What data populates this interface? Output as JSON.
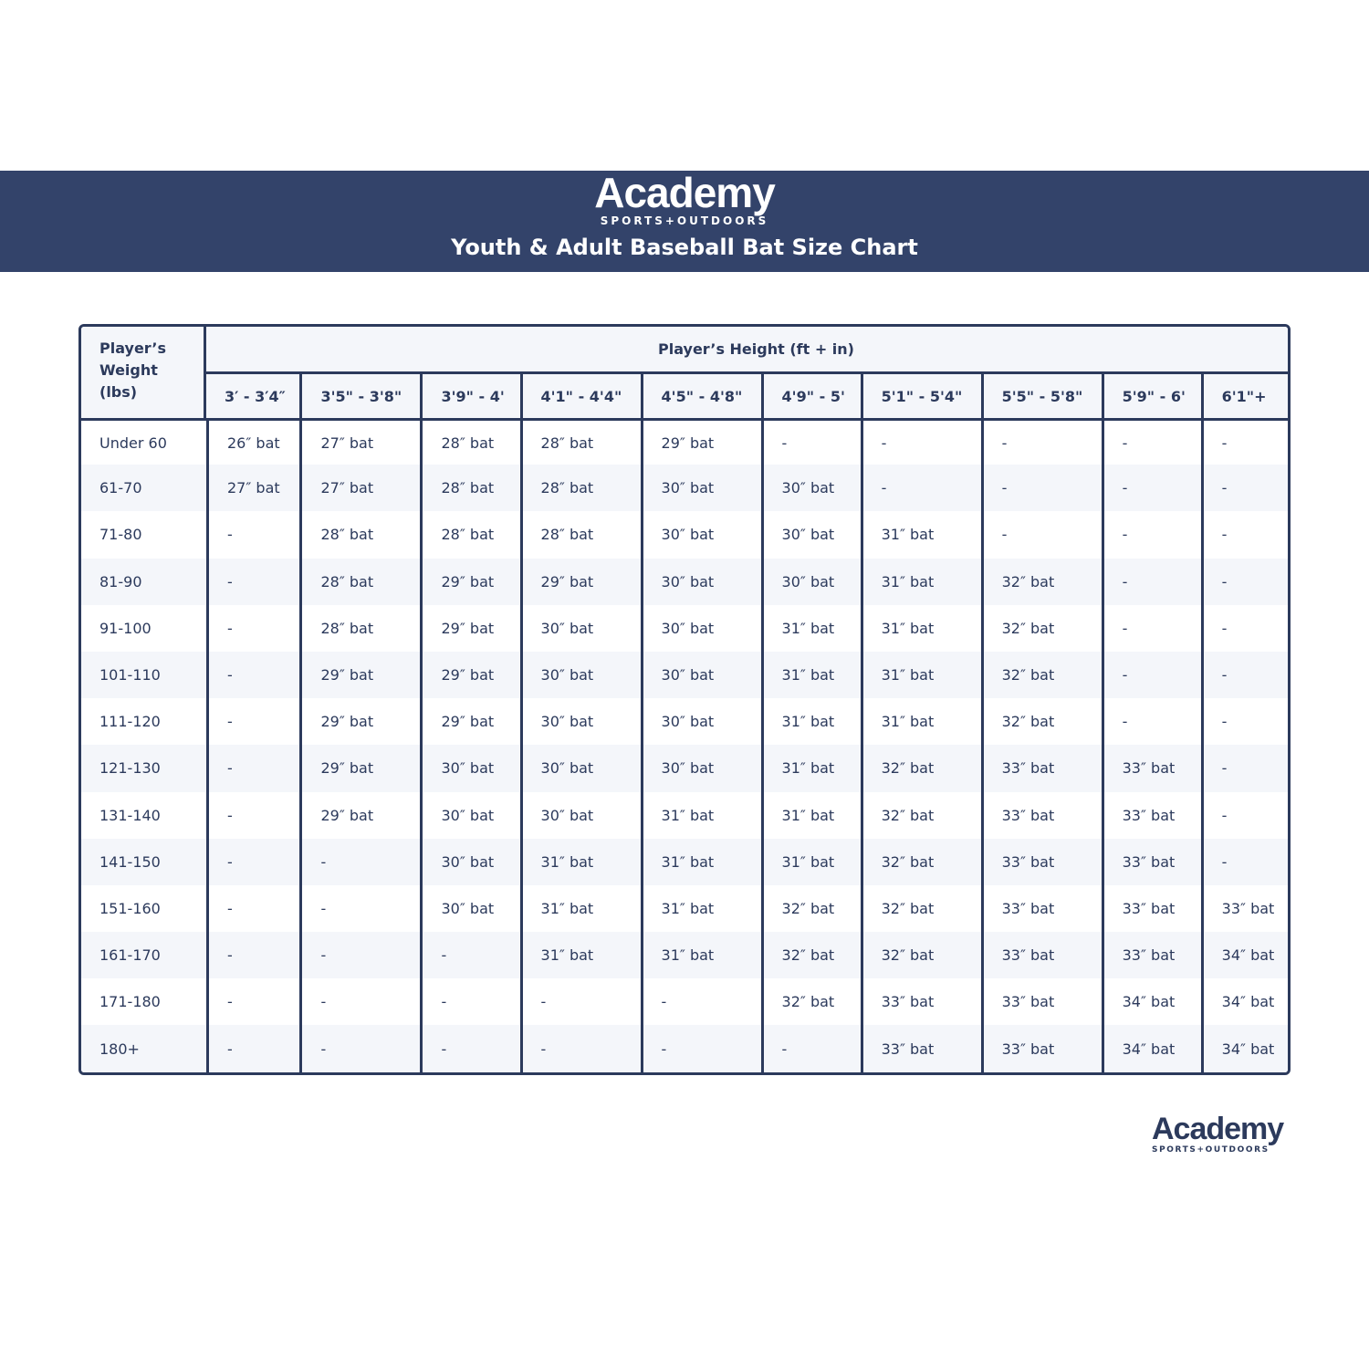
{
  "header": {
    "logo_text": "Academy",
    "logo_sub": "SPORTS+OUTDOORS",
    "title": "Youth & Adult Baseball Bat Size Chart"
  },
  "table": {
    "weight_header": "Player’s Weight (lbs)",
    "height_header": "Player’s Height (ft + in)",
    "columns": [
      "3′ - 3′4″",
      "3'5\" - 3'8\"",
      "3'9\" - 4'",
      "4'1\" - 4'4\"",
      "4'5\" - 4'8\"",
      "4'9\" - 5'",
      "5'1\" - 5'4\"",
      "5'5\" - 5'8\"",
      "5'9\" - 6'",
      "6'1\"+"
    ],
    "rows": [
      {
        "weight": "Under 60",
        "cells": [
          "26″ bat",
          "27″ bat",
          "28″ bat",
          "28″ bat",
          "29″ bat",
          "-",
          "-",
          "-",
          "-",
          "-"
        ]
      },
      {
        "weight": "61-70",
        "cells": [
          "27″ bat",
          "27″ bat",
          "28″ bat",
          "28″ bat",
          "30″ bat",
          "30″ bat",
          "-",
          "-",
          "-",
          "-"
        ]
      },
      {
        "weight": "71-80",
        "cells": [
          "-",
          "28″ bat",
          "28″ bat",
          "28″ bat",
          "30″ bat",
          "30″ bat",
          "31″ bat",
          "-",
          "-",
          "-"
        ]
      },
      {
        "weight": "81-90",
        "cells": [
          "-",
          "28″ bat",
          "29″ bat",
          "29″ bat",
          "30″ bat",
          "30″ bat",
          "31″ bat",
          "32″ bat",
          "-",
          "-"
        ]
      },
      {
        "weight": "91-100",
        "cells": [
          "-",
          "28″ bat",
          "29″ bat",
          "30″ bat",
          "30″ bat",
          "31″ bat",
          "31″ bat",
          "32″ bat",
          "-",
          "-"
        ]
      },
      {
        "weight": "101-110",
        "cells": [
          "-",
          "29″ bat",
          "29″ bat",
          "30″ bat",
          "30″ bat",
          "31″ bat",
          "31″ bat",
          "32″ bat",
          "-",
          "-"
        ]
      },
      {
        "weight": "111-120",
        "cells": [
          "-",
          "29″ bat",
          "29″ bat",
          "30″ bat",
          "30″ bat",
          "31″ bat",
          "31″ bat",
          "32″ bat",
          "-",
          "-"
        ]
      },
      {
        "weight": "121-130",
        "cells": [
          "-",
          "29″ bat",
          "30″ bat",
          "30″ bat",
          "30″ bat",
          "31″ bat",
          "32″ bat",
          "33″ bat",
          "33″ bat",
          "-"
        ]
      },
      {
        "weight": "131-140",
        "cells": [
          "-",
          "29″ bat",
          "30″ bat",
          "30″ bat",
          "31″ bat",
          "31″ bat",
          "32″ bat",
          "33″ bat",
          "33″ bat",
          "-"
        ]
      },
      {
        "weight": "141-150",
        "cells": [
          "-",
          "-",
          "30″ bat",
          "31″ bat",
          "31″ bat",
          "31″ bat",
          "32″ bat",
          "33″ bat",
          "33″ bat",
          "-"
        ]
      },
      {
        "weight": "151-160",
        "cells": [
          "-",
          "-",
          "30″ bat",
          "31″ bat",
          "31″ bat",
          "32″ bat",
          "32″ bat",
          "33″ bat",
          "33″ bat",
          "33″ bat"
        ]
      },
      {
        "weight": "161-170",
        "cells": [
          "-",
          "-",
          "-",
          "31″ bat",
          "31″ bat",
          "32″ bat",
          "32″ bat",
          "33″ bat",
          "33″ bat",
          "34″ bat"
        ]
      },
      {
        "weight": "171-180",
        "cells": [
          "-",
          "-",
          "-",
          "-",
          "-",
          "32″ bat",
          "33″ bat",
          "33″ bat",
          "34″ bat",
          "34″ bat"
        ]
      },
      {
        "weight": "180+",
        "cells": [
          "-",
          "-",
          "-",
          "-",
          "-",
          "-",
          "33″ bat",
          "33″ bat",
          "34″ bat",
          "34″ bat"
        ]
      }
    ]
  },
  "footer": {
    "logo_text": "Academy",
    "logo_sub": "SPORTS+OUTDOORS"
  },
  "colors": {
    "brand_navy": "#33436a",
    "row_shade": "#f4f6fa"
  }
}
